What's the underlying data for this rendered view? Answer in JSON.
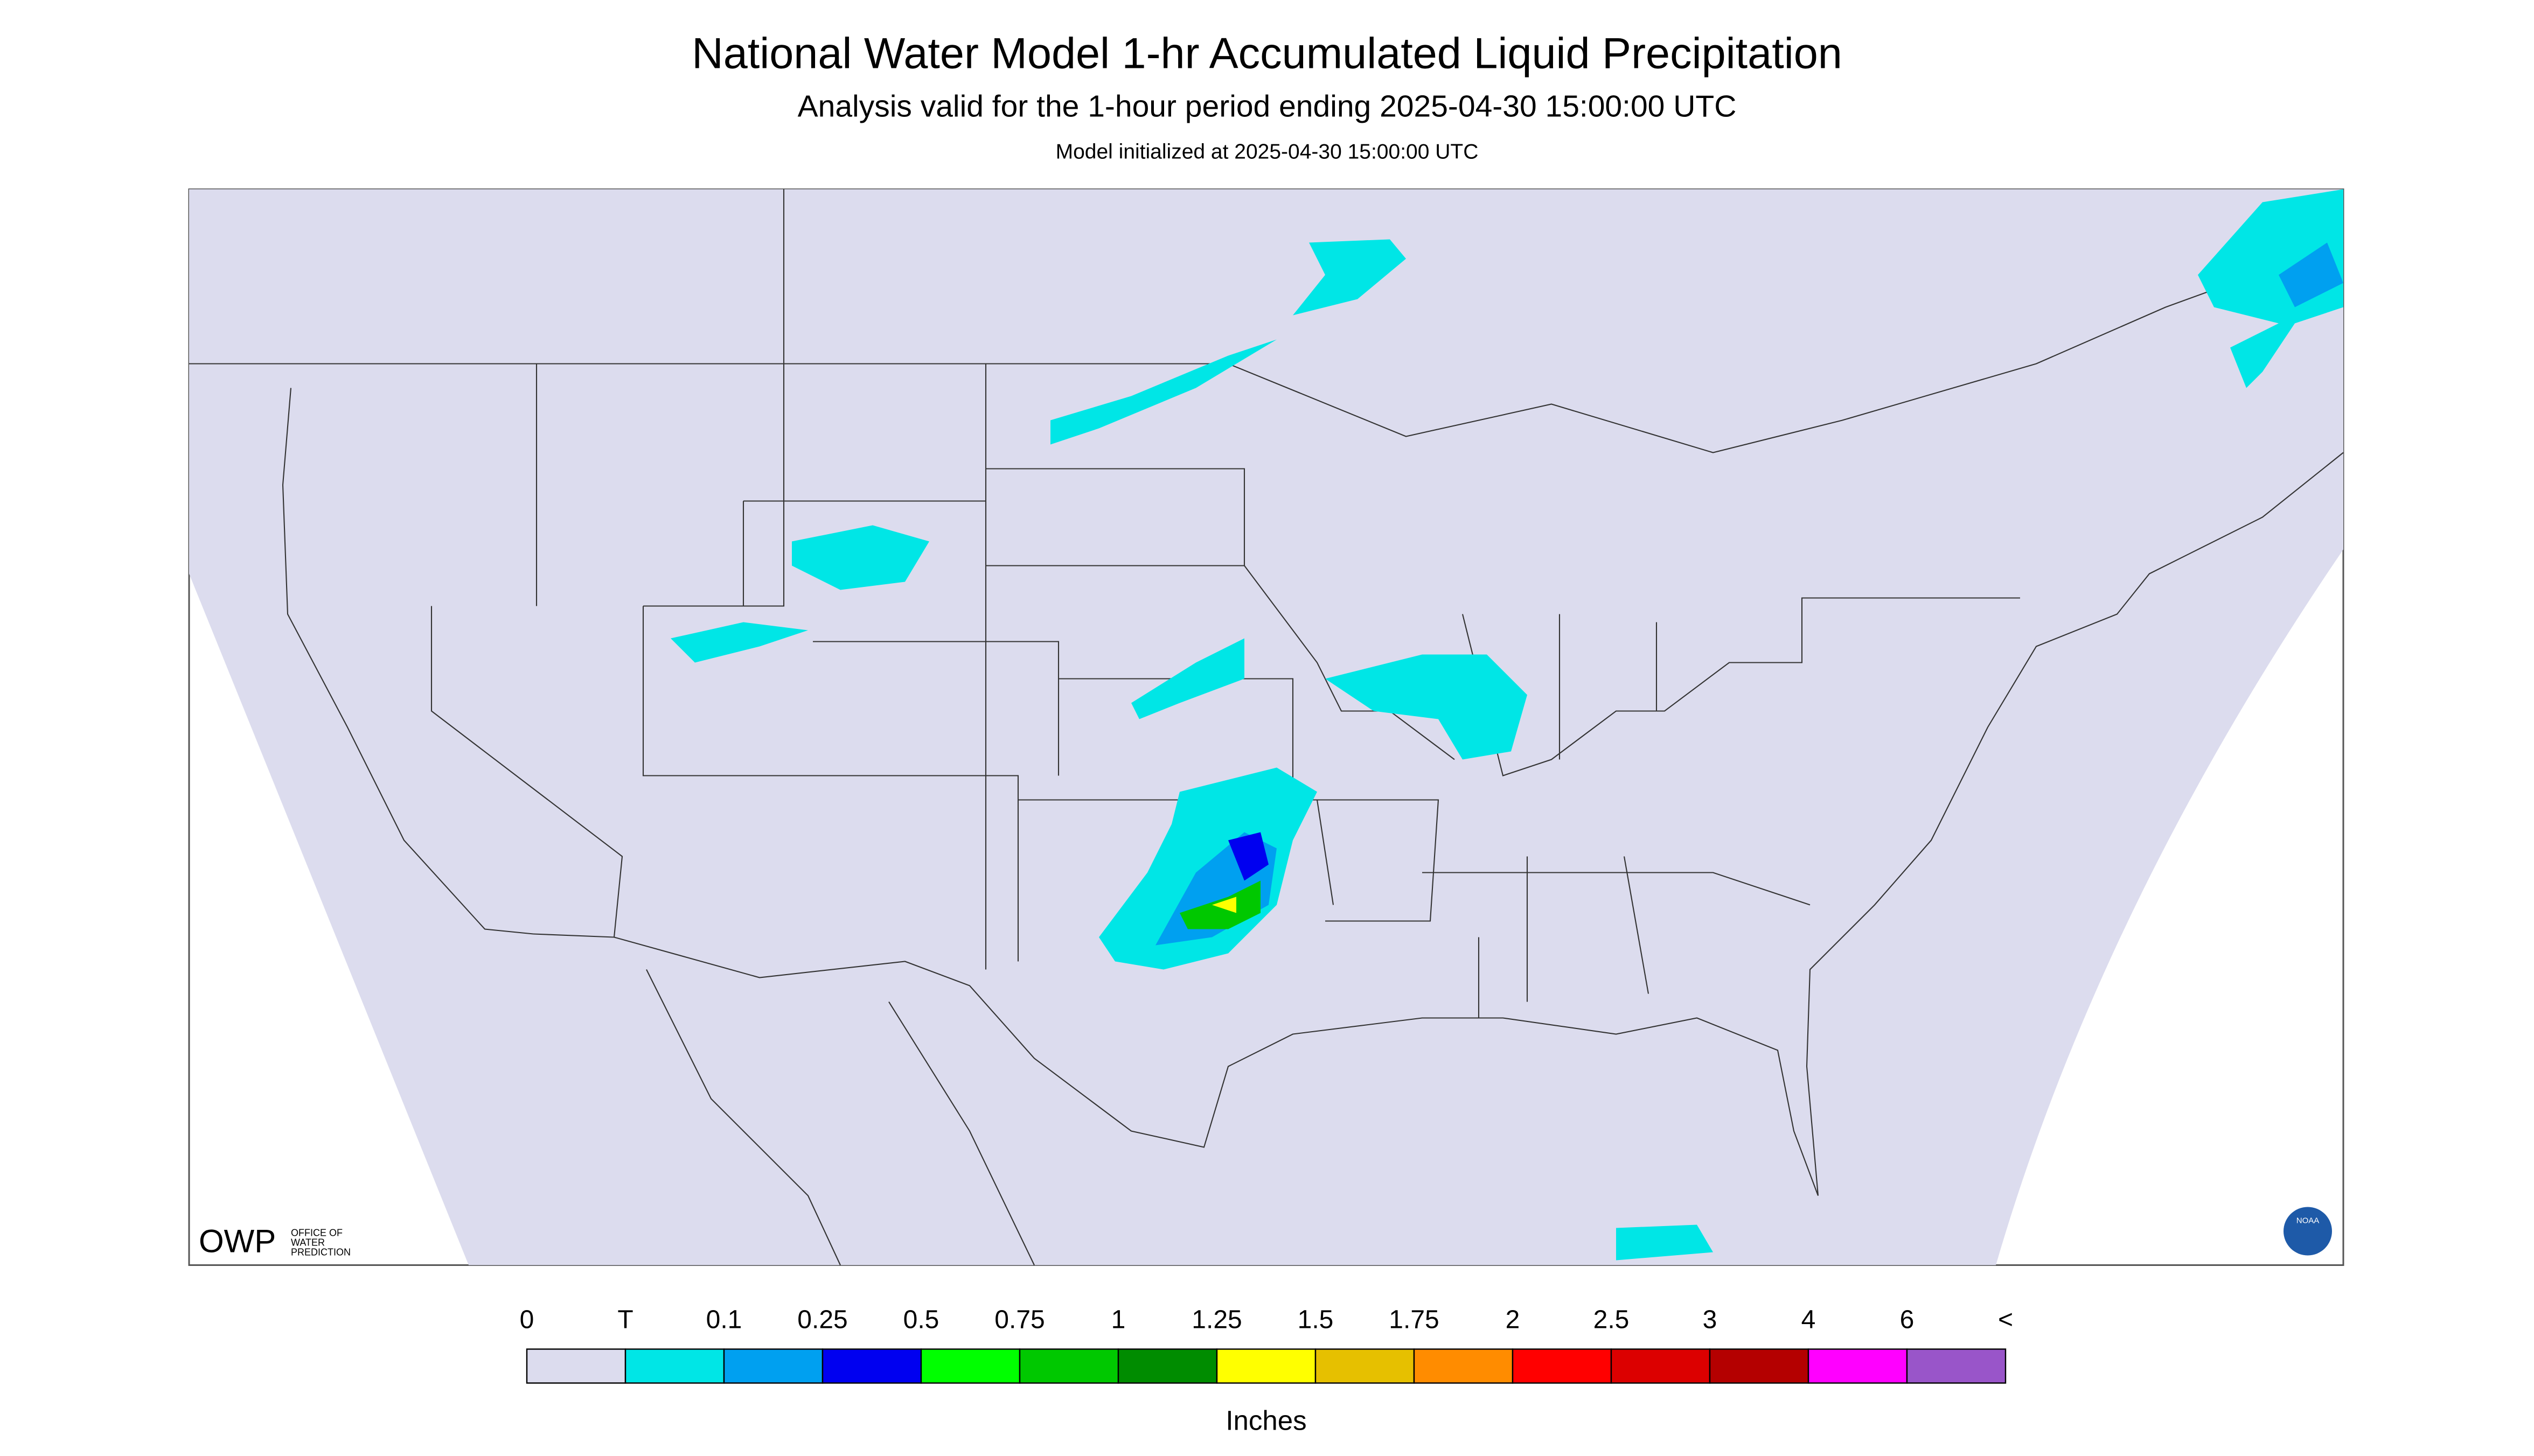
{
  "header": {
    "title": "National Water Model 1-hr Accumulated Liquid Precipitation",
    "subtitle": "Analysis valid for the 1-hour period ending 2025-04-30 15:00:00 UTC",
    "init": "Model initialized at 2025-04-30 15:00:00 UTC"
  },
  "logos": {
    "owp": "OWP",
    "owp_text": [
      "OFFICE OF",
      "WATER",
      "PREDICTION"
    ],
    "noaa": "NOAA"
  },
  "legend": {
    "labels": [
      "0",
      "T",
      "0.1",
      "0.25",
      "0.5",
      "0.75",
      "1",
      "1.25",
      "1.5",
      "1.75",
      "2",
      "2.5",
      "3",
      "4",
      "6",
      "<"
    ],
    "colors": [
      "#dcdcee",
      "#00e6e6",
      "#00a0f0",
      "#0000f0",
      "#00ff00",
      "#00c800",
      "#008c00",
      "#ffff00",
      "#e6c000",
      "#ff8c00",
      "#ff0000",
      "#dc0000",
      "#b40000",
      "#ff00ff",
      "#9955c9"
    ],
    "unit": "Inches"
  }
}
